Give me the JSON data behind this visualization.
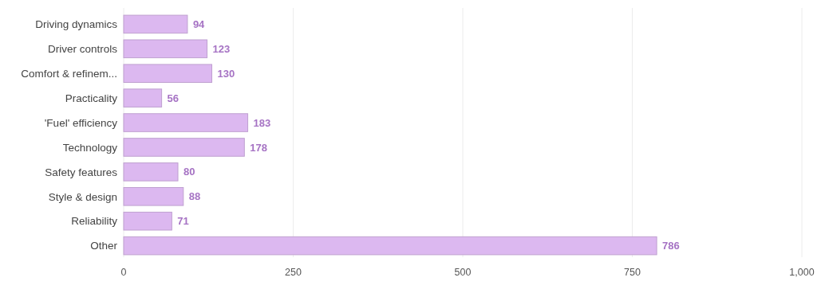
{
  "chart_data": {
    "type": "bar",
    "orientation": "horizontal",
    "categories": [
      "Driving dynamics",
      "Driver controls",
      "Comfort & refinem...",
      "Practicality",
      "'Fuel' efficiency",
      "Technology",
      "Safety features",
      "Style & design",
      "Reliability",
      "Other"
    ],
    "values": [
      94,
      123,
      130,
      56,
      183,
      178,
      80,
      88,
      71,
      786
    ],
    "color": "#dcb8f0",
    "data_labels": true,
    "xlim": [
      0,
      1000
    ],
    "xticks": [
      0,
      250,
      500,
      750,
      {
        "value": 1000,
        "label": "1,000"
      }
    ],
    "grid": "x"
  }
}
